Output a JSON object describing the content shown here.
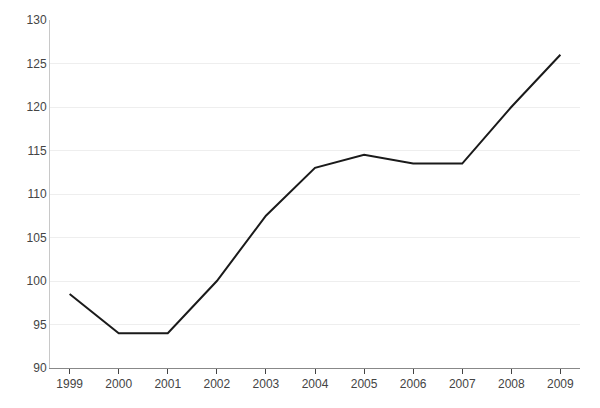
{
  "chart_data": {
    "type": "line",
    "x": [
      1999,
      2000,
      2001,
      2002,
      2003,
      2004,
      2005,
      2006,
      2007,
      2008,
      2009
    ],
    "values": [
      98.5,
      94.0,
      94.0,
      100.0,
      107.5,
      113.0,
      114.5,
      113.5,
      113.5,
      120.0,
      126.0
    ],
    "color": "#1a1a1a",
    "xlim": [
      1998.6,
      2009.4
    ],
    "xticks": [
      1999,
      2000,
      2001,
      2002,
      2003,
      2004,
      2005,
      2006,
      2007,
      2008,
      2009
    ],
    "ylim": [
      90,
      130
    ],
    "yticks": [
      90,
      95,
      100,
      105,
      110,
      115,
      120,
      125,
      130
    ],
    "grid": "y"
  }
}
